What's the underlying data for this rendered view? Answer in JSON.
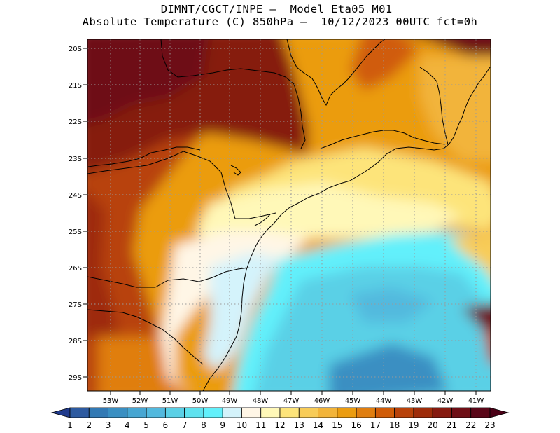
{
  "title": {
    "line1": "DIMNT/CGCT/INPE –  Model Eta05_M01_",
    "line2": "Absolute Temperature (C) 850hPa –  10/12/2023 00UTC fct=0h"
  },
  "map": {
    "lon_range": [
      -53.8,
      -40.6
    ],
    "lat_range": [
      -29.4,
      -19.7
    ],
    "lon_labels": [
      "53W",
      "52W",
      "51W",
      "50W",
      "49W",
      "48W",
      "47W",
      "46W",
      "45W",
      "44W",
      "43W",
      "42W",
      "41W"
    ],
    "lat_labels": [
      "20S",
      "21S",
      "22S",
      "23S",
      "24S",
      "25S",
      "26S",
      "27S",
      "28S",
      "29S"
    ],
    "gridlines": "dotted"
  },
  "colorbar": {
    "labels": [
      "1",
      "2",
      "3",
      "4",
      "5",
      "6",
      "7",
      "8",
      "9",
      "10",
      "11",
      "12",
      "13",
      "14",
      "15",
      "16",
      "17",
      "18",
      "19",
      "20",
      "21",
      "22",
      "23"
    ],
    "colors": [
      "#203a8c",
      "#2d5aa0",
      "#3279b4",
      "#3a8fc2",
      "#47a6d2",
      "#52b9de",
      "#5ad0e6",
      "#5ee2ef",
      "#62f0fb",
      "#d4f3fb",
      "#fff6e6",
      "#fff8b8",
      "#fde47a",
      "#f8cc58",
      "#f2b43a",
      "#eb9c10",
      "#e07e10",
      "#d05c08",
      "#b8420a",
      "#9e2c0a",
      "#861a10",
      "#6e0e16",
      "#5a0618",
      "#4a0016"
    ],
    "units": "C"
  }
}
